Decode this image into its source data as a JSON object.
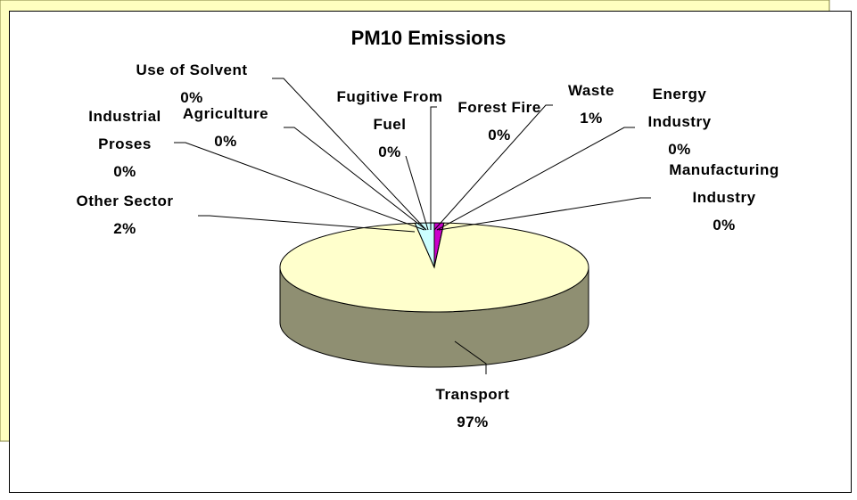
{
  "chart_data": {
    "type": "pie",
    "title": "PM10 Emissions",
    "categories": [
      "Waste",
      "Energy Industry",
      "Manufacturing Industry",
      "Transport",
      "Other Sector",
      "Industrial Proses",
      "Agriculture",
      "Use of Solvent",
      "Fugitive From Fuel",
      "Forest Fire"
    ],
    "values": [
      1,
      0,
      0,
      97,
      2,
      0,
      0,
      0,
      0,
      0
    ],
    "value_labels": [
      "1%",
      "0%",
      "0%",
      "97%",
      "2%",
      "0%",
      "0%",
      "0%",
      "0%",
      "0%"
    ],
    "colors": [
      "#cc00cc",
      "#9999ff",
      "#993366",
      "#ffffcc",
      "#ccffff",
      "#660066",
      "#ff8080",
      "#0066cc",
      "#ccccff",
      "#000080"
    ]
  }
}
